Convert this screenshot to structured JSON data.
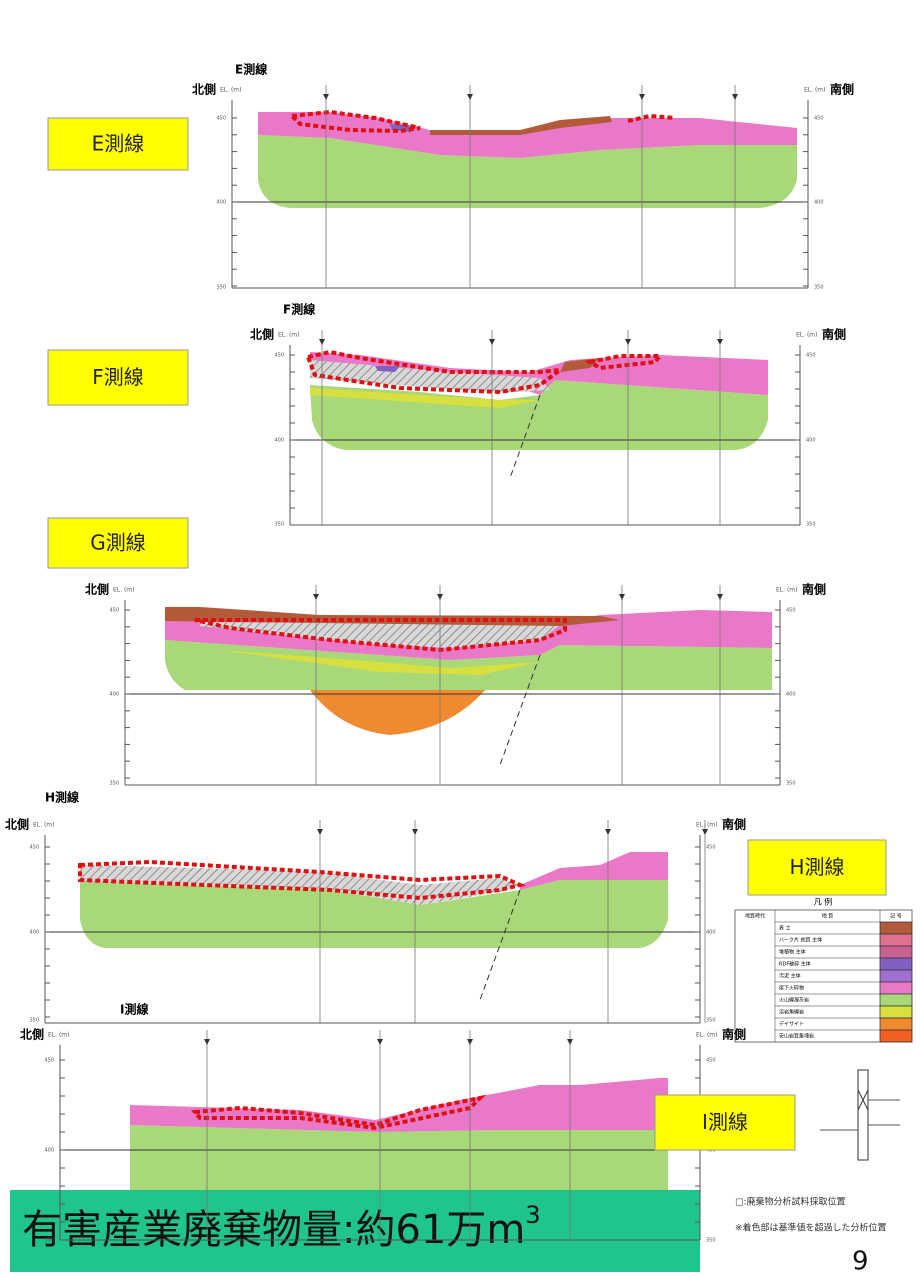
{
  "sections": [
    {
      "title": "E測線",
      "north": "北側",
      "south": "南側",
      "unit": "EL. (m)",
      "label": "E測線"
    },
    {
      "title": "F測線",
      "north": "北側",
      "south": "南側",
      "unit": "EL. (m)",
      "label": "F測線"
    },
    {
      "title": "G測線",
      "north": "北側",
      "south": "南側",
      "unit": "EL. (m)",
      "label": "G測線"
    },
    {
      "title": "H測線",
      "north": "北側",
      "south": "南側",
      "unit": "EL. (m)",
      "label": "H測線"
    },
    {
      "title": "I測線",
      "north": "北側",
      "south": "南側",
      "unit": "EL. (m)",
      "label": "I測線"
    }
  ],
  "elevations": [
    "450",
    "400",
    "350"
  ],
  "legend": {
    "title": "凡 例",
    "headers": [
      "地質時代",
      "地 質",
      "記 号"
    ],
    "rows": [
      "表 土",
      "バーク片 他質 主体",
      "堆積物 主体",
      "RDF破砕 主体",
      "汚泥 主体",
      "崖下火砕物",
      "火山礫凝灰岩",
      "溶岩角礫岩",
      "デイサイト",
      "安山岩質集塊岩"
    ]
  },
  "notes": [
    "□:廃棄物分析試料採取位置",
    "※着色部は基準値を超過した分析位置"
  ],
  "banner": {
    "text": "有害産業廃棄物量:約61万m",
    "sup": "3"
  },
  "page_number": "9"
}
